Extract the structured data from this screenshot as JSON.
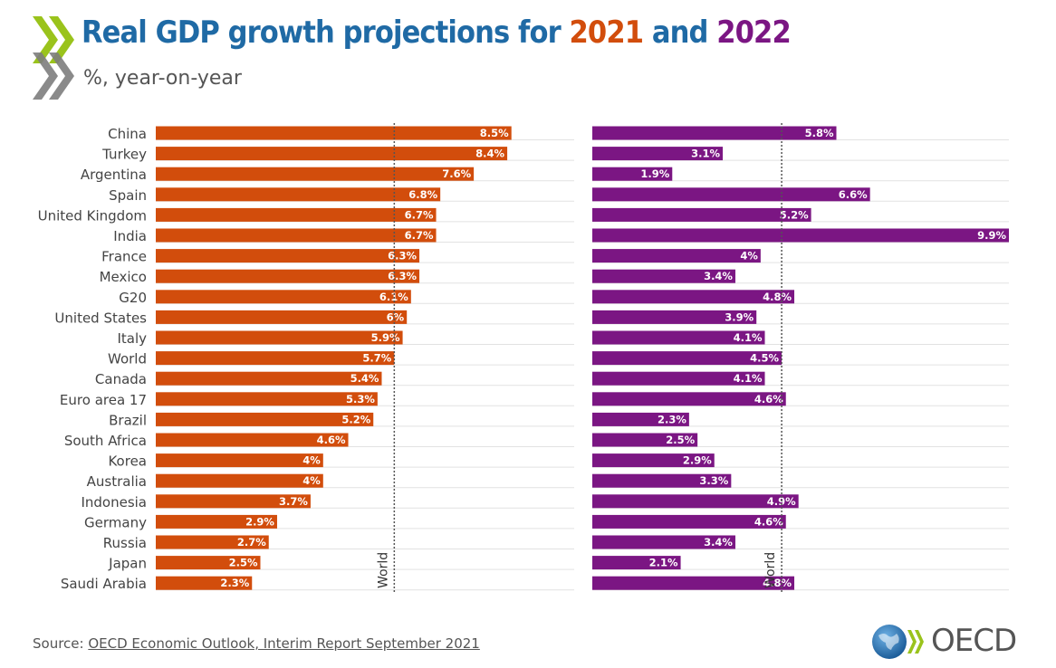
{
  "header": {
    "title_prefix": "Real GDP growth projections for ",
    "title_year1": "2021",
    "title_join": " and ",
    "title_year2": "2022",
    "subtitle": "%, year-on-year"
  },
  "chart_data": {
    "type": "bar",
    "orientation": "horizontal",
    "categories": [
      "China",
      "Turkey",
      "Argentina",
      "Spain",
      "United Kingdom",
      "India",
      "France",
      "Mexico",
      "G20",
      "United States",
      "Italy",
      "World",
      "Canada",
      "Euro area 17",
      "Brazil",
      "South Africa",
      "Korea",
      "Australia",
      "Indonesia",
      "Germany",
      "Russia",
      "Japan",
      "Saudi Arabia"
    ],
    "series": [
      {
        "name": "2021",
        "color": "#d24d0c",
        "values": [
          8.5,
          8.4,
          7.6,
          6.8,
          6.7,
          6.7,
          6.3,
          6.3,
          6.1,
          6,
          5.9,
          5.7,
          5.4,
          5.3,
          5.2,
          4.6,
          4,
          4,
          3.7,
          2.9,
          2.7,
          2.5,
          2.3
        ],
        "labels": [
          "8.5%",
          "8.4%",
          "7.6%",
          "6.8%",
          "6.7%",
          "6.7%",
          "6.3%",
          "6.3%",
          "6.1%",
          "6%",
          "5.9%",
          "5.7%",
          "5.4%",
          "5.3%",
          "5.2%",
          "4.6%",
          "4%",
          "4%",
          "3.7%",
          "2.9%",
          "2.7%",
          "2.5%",
          "2.3%"
        ],
        "reference_label": "World",
        "reference_value": 5.7,
        "xlim": [
          0,
          10
        ]
      },
      {
        "name": "2022",
        "color": "#7b1683",
        "values": [
          5.8,
          3.1,
          1.9,
          6.6,
          5.2,
          9.9,
          4,
          3.4,
          4.8,
          3.9,
          4.1,
          4.5,
          4.1,
          4.6,
          2.3,
          2.5,
          2.9,
          3.3,
          4.9,
          4.6,
          3.4,
          2.1,
          4.8
        ],
        "labels": [
          "5.8%",
          "3.1%",
          "1.9%",
          "6.6%",
          "5.2%",
          "9.9%",
          "4%",
          "3.4%",
          "4.8%",
          "3.9%",
          "4.1%",
          "4.5%",
          "4.1%",
          "4.6%",
          "2.3%",
          "2.5%",
          "2.9%",
          "3.3%",
          "4.9%",
          "4.6%",
          "3.4%",
          "2.1%",
          "4.8%"
        ],
        "reference_label": "World",
        "reference_value": 4.5,
        "xlim": [
          0,
          9.9
        ]
      }
    ],
    "grid": true,
    "legend": "none"
  },
  "footer": {
    "source_label": "Source: ",
    "source_link": "OECD Economic Outlook, Interim Report September 2021",
    "logo_text": "OECD"
  },
  "colors": {
    "title_blue": "#1f6aa5",
    "year1_orange": "#d24d0c",
    "year2_purple": "#7b1683",
    "chevron_green": "#9ac31c",
    "chevron_gray": "#7d7d7d"
  }
}
